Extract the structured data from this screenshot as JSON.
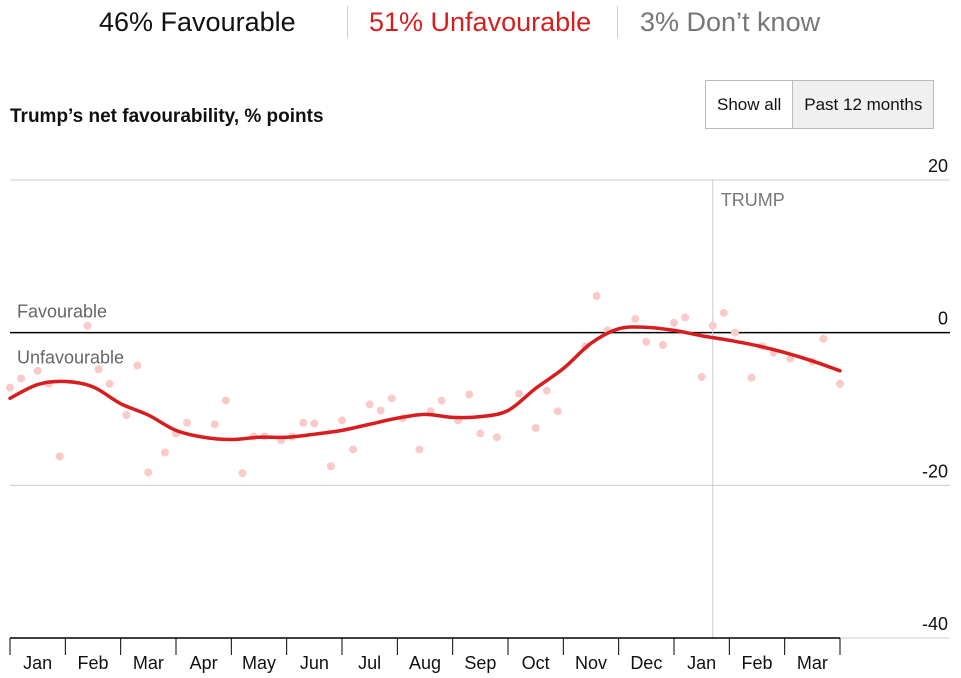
{
  "summary": [
    {
      "text": "46% Favourable",
      "color": "#111111"
    },
    {
      "text": "51% Unfavourable",
      "color": "#d71e1e"
    },
    {
      "text": "3% Don’t know",
      "color": "#777777"
    }
  ],
  "buttons": [
    {
      "label": "Show all",
      "selected": false
    },
    {
      "label": "Past 12 months",
      "selected": true
    }
  ],
  "chart_data": {
    "type": "line",
    "title": "Trump’s net favourability, % points",
    "categories": [
      "Jan",
      "Feb",
      "Mar",
      "Apr",
      "May",
      "Jun",
      "Jul",
      "Aug",
      "Sep",
      "Oct",
      "Nov",
      "Dec",
      "Jan",
      "Feb",
      "Mar"
    ],
    "xlim": [
      0,
      15
    ],
    "ylim": [
      -40,
      20
    ],
    "yticks": [
      -40,
      -20,
      0,
      20
    ],
    "zero_labels": {
      "above": "Favourable",
      "below": "Unfavourable"
    },
    "annotations": [
      {
        "text": "TRUMP",
        "x": 12.7
      }
    ],
    "series": [
      {
        "type": "line",
        "color": "#d71e1e",
        "x": [
          0,
          0.5,
          1,
          1.5,
          2,
          2.5,
          3,
          3.5,
          4,
          4.5,
          5,
          5.5,
          6,
          6.5,
          7,
          7.5,
          8,
          8.5,
          9,
          9.5,
          10,
          10.5,
          11,
          11.5,
          12,
          12.5,
          13,
          13.5,
          14,
          14.5,
          15
        ],
        "values": [
          -8.6,
          -6.8,
          -6.4,
          -7.1,
          -9.3,
          -10.8,
          -12.8,
          -13.7,
          -14.0,
          -13.7,
          -13.7,
          -13.3,
          -12.8,
          -12.0,
          -11.2,
          -10.7,
          -11.1,
          -11.0,
          -10.2,
          -7.3,
          -4.7,
          -1.4,
          0.5,
          0.7,
          0.3,
          -0.4,
          -1.0,
          -1.7,
          -2.6,
          -3.7,
          -5.0
        ]
      },
      {
        "type": "scatter",
        "color": "#f9caca",
        "x": [
          0.0,
          0.2,
          0.5,
          0.7,
          0.9,
          1.4,
          1.6,
          1.8,
          2.1,
          2.3,
          2.5,
          2.8,
          3.0,
          3.2,
          3.7,
          3.9,
          4.2,
          4.4,
          4.6,
          4.9,
          5.1,
          5.3,
          5.5,
          5.8,
          6.0,
          6.2,
          6.5,
          6.7,
          6.9,
          7.1,
          7.4,
          7.6,
          7.8,
          8.1,
          8.3,
          8.5,
          8.8,
          9.2,
          9.5,
          9.7,
          9.9,
          10.4,
          10.6,
          10.8,
          11.3,
          11.5,
          11.8,
          12.0,
          12.2,
          12.5,
          12.7,
          12.9,
          13.1,
          13.4,
          13.6,
          13.8,
          14.1,
          14.5,
          14.7,
          15.0
        ],
        "values": [
          -7.2,
          -6.0,
          -5.0,
          -6.7,
          -16.2,
          0.9,
          -4.8,
          -6.7,
          -10.8,
          -4.3,
          -18.3,
          -15.7,
          -13.2,
          -11.8,
          -12.0,
          -8.9,
          -18.4,
          -13.6,
          -13.6,
          -14.1,
          -13.6,
          -11.8,
          -11.9,
          -17.5,
          -11.5,
          -15.3,
          -9.4,
          -10.2,
          -8.6,
          -11.2,
          -15.3,
          -10.3,
          -8.9,
          -11.5,
          -8.1,
          -13.2,
          -13.7,
          -8.0,
          -12.5,
          -7.6,
          -10.3,
          -1.8,
          4.8,
          0.3,
          1.8,
          -1.2,
          -1.6,
          1.3,
          2.0,
          -5.8,
          0.9,
          2.6,
          0.0,
          -5.9,
          -1.8,
          -2.6,
          -3.4,
          -3.8,
          -0.8,
          -6.7
        ]
      }
    ]
  }
}
